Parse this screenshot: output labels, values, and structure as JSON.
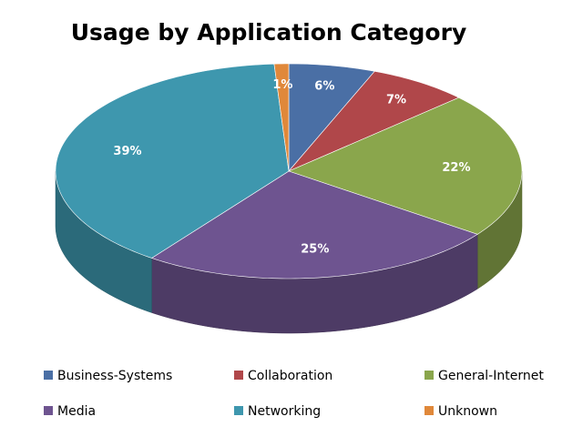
{
  "chart_data": {
    "type": "pie3d",
    "title": "Usage by Application Category",
    "categories": [
      "Business-Systems",
      "Collaboration",
      "General-Internet",
      "Media",
      "Networking",
      "Unknown"
    ],
    "values": [
      6,
      7,
      22,
      25,
      39,
      1
    ],
    "value_labels": [
      "6%",
      "7%",
      "22%",
      "25%",
      "39%",
      "1%"
    ],
    "colors": [
      "#4a6fa5",
      "#b0474a",
      "#8aa64c",
      "#6e5490",
      "#3e97ae",
      "#e0883a"
    ],
    "legend": "bottom"
  }
}
